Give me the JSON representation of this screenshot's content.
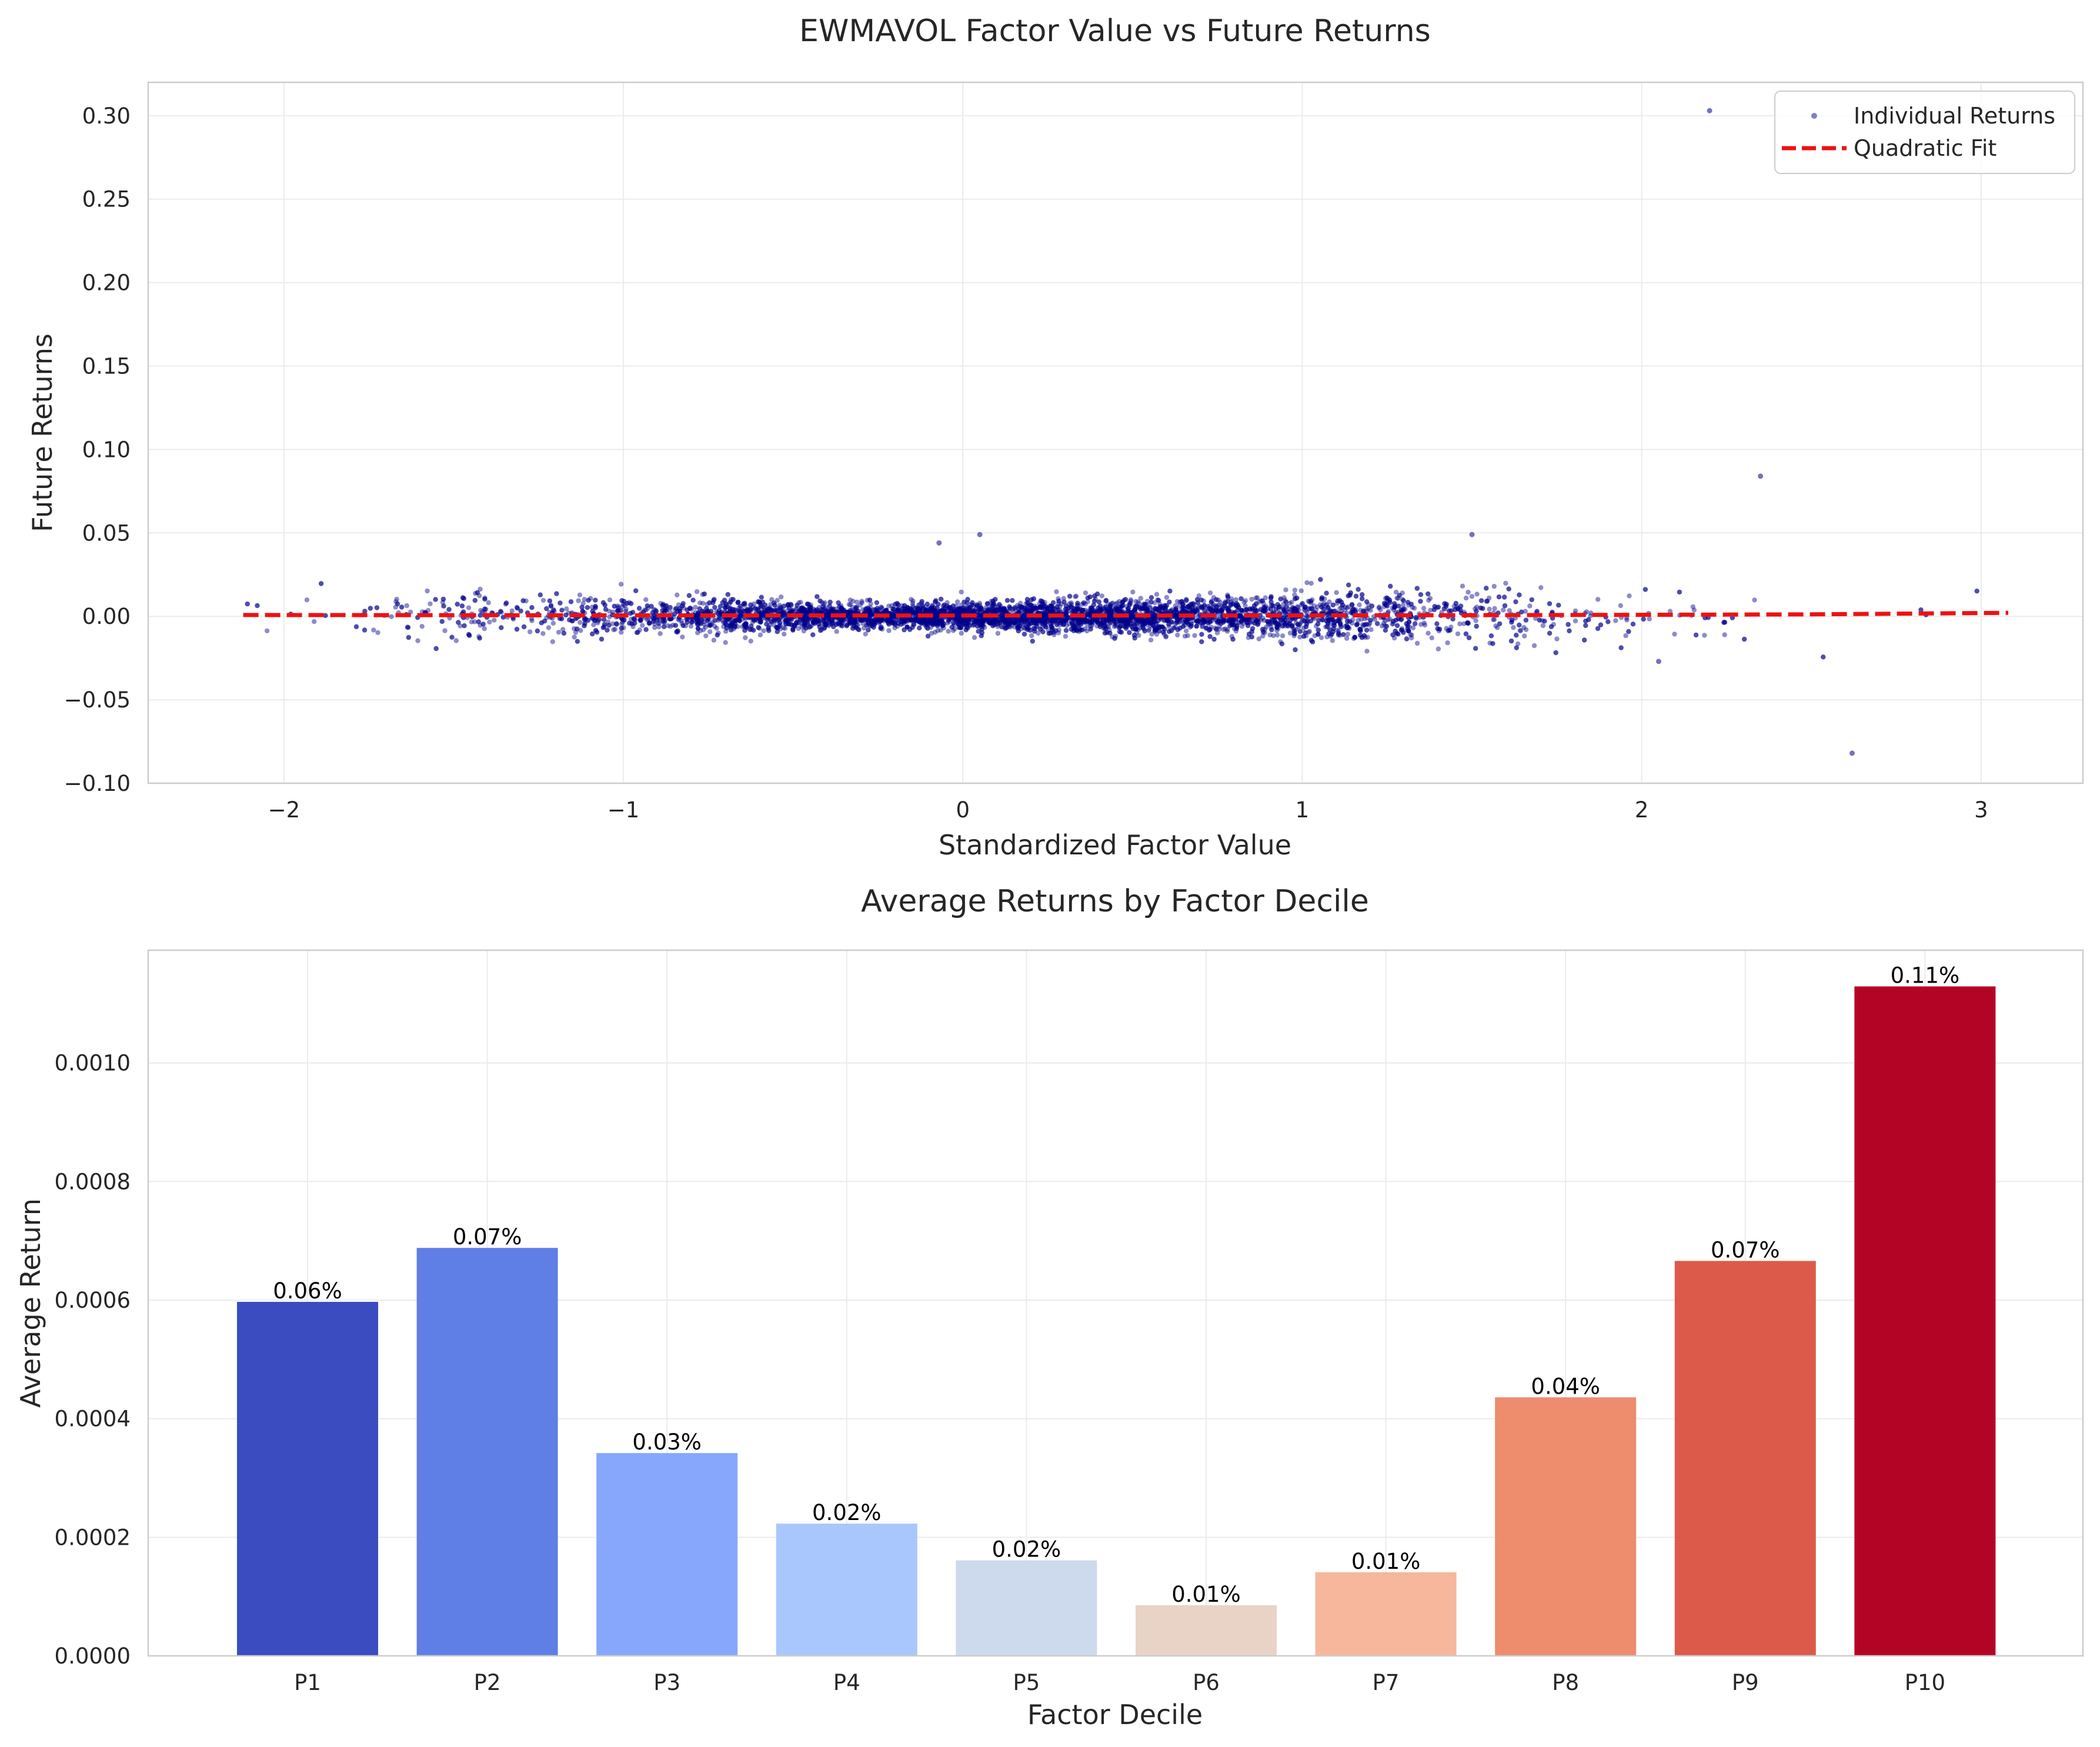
{
  "chart_data": [
    {
      "type": "scatter",
      "title": "EWMAVOL Factor Value vs Future Returns",
      "xlabel": "Standardized Factor Value",
      "ylabel": "Future Returns",
      "xlim": [
        -2.4,
        3.3
      ],
      "ylim": [
        -0.1,
        0.32
      ],
      "xticks": [
        -2,
        -1,
        0,
        1,
        2,
        3
      ],
      "xtick_labels": [
        "−2",
        "−1",
        "0",
        "1",
        "2",
        "3"
      ],
      "yticks": [
        -0.1,
        -0.05,
        0.0,
        0.05,
        0.1,
        0.15,
        0.2,
        0.25,
        0.3
      ],
      "ytick_labels": [
        "−0.10",
        "−0.05",
        "0.00",
        "0.05",
        "0.10",
        "0.15",
        "0.20",
        "0.25",
        "0.30"
      ],
      "grid": true,
      "legend_position": "top-right",
      "series": [
        {
          "name": "Individual Returns",
          "kind": "scatter",
          "color": "#00008b",
          "opacity": 0.45,
          "x_range": [
            -2.12,
            3.08
          ],
          "n_points_approx": 6000,
          "y_center": 0.0,
          "y_spread_approx": 0.006,
          "notable_points": [
            {
              "x": 2.2,
              "y": 0.303
            },
            {
              "x": 2.35,
              "y": 0.084
            },
            {
              "x": 2.62,
              "y": -0.082
            },
            {
              "x": 0.05,
              "y": 0.049
            },
            {
              "x": 1.5,
              "y": 0.049
            },
            {
              "x": -0.07,
              "y": 0.044
            },
            {
              "x": 2.05,
              "y": -0.027
            }
          ]
        },
        {
          "name": "Quadratic Fit",
          "kind": "line",
          "style": "dashed",
          "color": "#ee1111",
          "x": [
            -2.12,
            -1.5,
            -1.0,
            -0.5,
            0.0,
            0.5,
            1.0,
            1.5,
            2.0,
            2.5,
            3.08
          ],
          "y": [
            0.0008,
            0.0007,
            0.0006,
            0.00055,
            0.0005,
            0.0005,
            0.00055,
            0.0007,
            0.0009,
            0.0012,
            0.0021
          ]
        }
      ]
    },
    {
      "type": "bar",
      "title": "Average Returns by Factor Decile",
      "xlabel": "Factor Decile",
      "ylabel": "Average Return",
      "ylim": [
        0,
        0.00119
      ],
      "yticks": [
        0.0,
        0.0002,
        0.0004,
        0.0006,
        0.0008,
        0.001
      ],
      "ytick_labels": [
        "0.0000",
        "0.0002",
        "0.0004",
        "0.0006",
        "0.0008",
        "0.0010"
      ],
      "grid": true,
      "categories": [
        "P1",
        "P2",
        "P3",
        "P4",
        "P5",
        "P6",
        "P7",
        "P8",
        "P9",
        "P10"
      ],
      "values": [
        0.000597,
        0.000688,
        0.000342,
        0.000223,
        0.000161,
        8.55e-05,
        0.000141,
        0.000436,
        0.000666,
        0.001129
      ],
      "labels": [
        "0.06%",
        "0.07%",
        "0.03%",
        "0.02%",
        "0.02%",
        "0.01%",
        "0.01%",
        "0.04%",
        "0.07%",
        "0.11%"
      ],
      "colors": [
        "#3b4cc0",
        "#5f7ee6",
        "#86a7fc",
        "#aac7fd",
        "#cdd9ec",
        "#e9d3c6",
        "#f6b79c",
        "#ee8c6e",
        "#dc5a49",
        "#b40426"
      ]
    }
  ]
}
